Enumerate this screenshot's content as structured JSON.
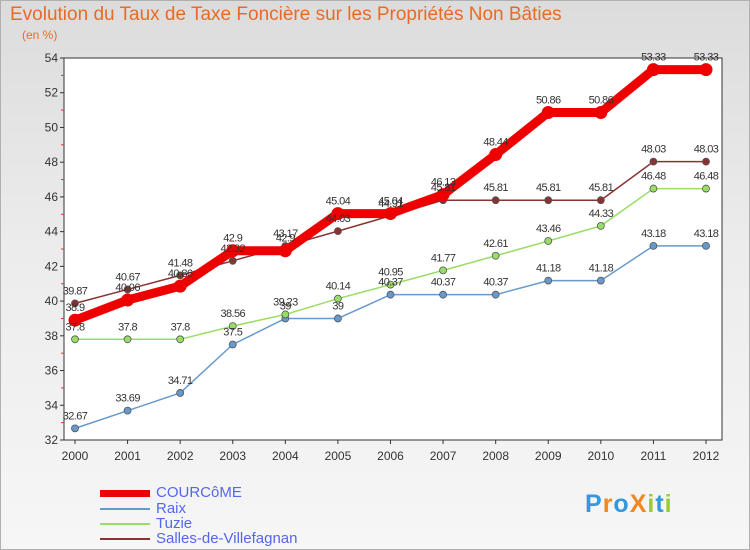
{
  "chart_data": {
    "type": "line",
    "title": "Evolution du Taux de Taxe Foncière sur les Propriétés Non Bâties",
    "ylabel": "(en %)",
    "xlabel": "",
    "ylim": [
      32,
      54
    ],
    "yticks": [
      32,
      34,
      36,
      38,
      40,
      42,
      44,
      46,
      48,
      50,
      52,
      54
    ],
    "x": [
      "2000",
      "2001",
      "2002",
      "2003",
      "2004",
      "2005",
      "2006",
      "2007",
      "2008",
      "2009",
      "2010",
      "2011",
      "2012"
    ],
    "series": [
      {
        "name": "COURCôME",
        "color": "#ee0000",
        "values": [
          38.9,
          40.06,
          40.86,
          42.9,
          42.9,
          45.04,
          45.04,
          46.13,
          48.44,
          50.86,
          50.86,
          53.33,
          53.33
        ]
      },
      {
        "name": "Raix",
        "color": "#6699cc",
        "values": [
          32.67,
          33.69,
          34.71,
          37.5,
          39.0,
          39.0,
          40.37,
          40.37,
          40.37,
          41.18,
          41.18,
          43.18,
          43.18
        ]
      },
      {
        "name": "Tuzie",
        "color": "#99dd66",
        "values": [
          37.8,
          37.8,
          37.8,
          38.56,
          39.23,
          40.14,
          40.95,
          41.77,
          42.61,
          43.46,
          44.33,
          46.48,
          46.48
        ]
      },
      {
        "name": "Salles-de-Villefagnan",
        "color": "#883333",
        "values": [
          39.87,
          40.67,
          41.48,
          42.32,
          43.17,
          44.03,
          44.91,
          45.81,
          45.81,
          45.81,
          45.81,
          48.03,
          48.03
        ]
      }
    ],
    "data_labels": [
      [
        "38.9",
        "40.06",
        "40.86",
        "42.9",
        "42.9",
        "45.04",
        "45.04",
        "46.13",
        "48.44",
        "50.86",
        "50.86",
        "53.33",
        "53.33"
      ],
      [
        "32.67",
        "33.69",
        "34.71",
        "37.5",
        "39",
        "39",
        "40.37",
        "40.37",
        "40.37",
        "41.18",
        "41.18",
        "43.18",
        "43.18"
      ],
      [
        "37.8",
        "37.8",
        "37.8",
        "38.56",
        "39.23",
        "40.14",
        "40.95",
        "41.77",
        "42.61",
        "43.46",
        "44.33",
        "46.48",
        "46.48"
      ],
      [
        "39.87",
        "40.67",
        "41.48",
        "42.32",
        "43.17",
        "44.03",
        "44.91",
        "45.81",
        "45.81",
        "45.81",
        "45.81",
        "48.03",
        "48.03"
      ]
    ],
    "legend": "bottom-left",
    "grid": false
  },
  "logo": {
    "text": "ProXiti",
    "letter_colors": [
      "#3399dd",
      "#ee8822",
      "#3399dd",
      "#ee8822",
      "#99cc33",
      "#3399dd",
      "#99cc33"
    ]
  }
}
